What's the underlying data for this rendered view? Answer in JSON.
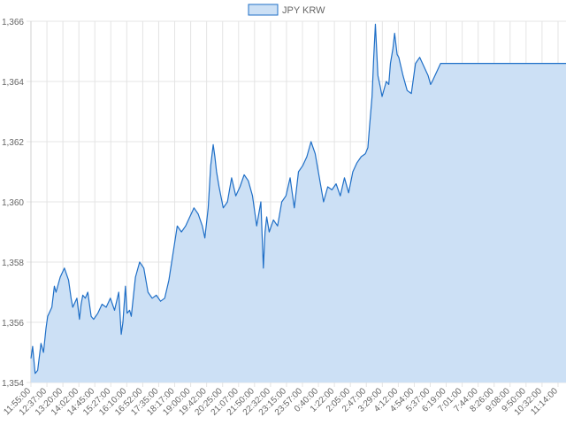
{
  "chart_data": {
    "type": "area",
    "legend": {
      "label": "JPY KRW",
      "position": "top"
    },
    "colors": {
      "line": "#1f6fc7",
      "fill": "#cce0f5",
      "grid": "#e4e4e4",
      "text": "#666666"
    },
    "grid": true,
    "y_range": [
      1354,
      1366
    ],
    "y_ticks": [
      1354,
      1356,
      1358,
      1360,
      1362,
      1364,
      1366
    ],
    "y_tick_labels": [
      "1,354",
      "1,356",
      "1,358",
      "1,360",
      "1,362",
      "1,364",
      "1,366"
    ],
    "x_tick_labels": [
      "11:55:00",
      "12:37:00",
      "13:20:00",
      "14:02:00",
      "14:45:00",
      "15:27:00",
      "16:10:00",
      "16:52:00",
      "17:35:00",
      "18:17:00",
      "19:00:00",
      "19:42:00",
      "20:25:00",
      "21:07:00",
      "21:50:00",
      "22:32:00",
      "23:15:00",
      "23:57:00",
      "0:40:00",
      "1:22:00",
      "2:05:00",
      "2:47:00",
      "3:29:00",
      "4:12:00",
      "4:54:00",
      "5:37:00",
      "6:19:00",
      "7:01:00",
      "7:44:00",
      "8:26:00",
      "9:08:00",
      "9:50:00",
      "10:32:00",
      "11:14:00"
    ],
    "series": [
      {
        "name": "JPY KRW",
        "x": [
          0,
          2,
          5,
          8,
          12,
          15,
          18,
          20,
          25,
          28,
          30,
          35,
          40,
          45,
          48,
          50,
          55,
          58,
          60,
          62,
          65,
          68,
          70,
          72,
          75,
          80,
          85,
          90,
          95,
          100,
          105,
          108,
          110,
          113,
          115,
          118,
          120,
          125,
          130,
          135,
          140,
          145,
          150,
          155,
          160,
          165,
          170,
          175,
          180,
          185,
          190,
          195,
          200,
          205,
          208,
          210,
          212,
          215,
          218,
          220,
          222,
          225,
          230,
          235,
          240,
          245,
          250,
          255,
          260,
          265,
          270,
          275,
          278,
          280,
          282,
          285,
          290,
          295,
          300,
          305,
          310,
          315,
          320,
          325,
          330,
          335,
          340,
          345,
          350,
          355,
          360,
          365,
          370,
          375,
          380,
          385,
          390,
          395,
          400,
          403,
          405,
          408,
          410,
          412,
          415,
          418,
          420,
          425,
          428,
          430,
          433,
          435,
          438,
          440,
          445,
          450,
          455,
          460,
          465,
          470,
          475,
          478,
          480,
          490,
          500,
          510,
          520,
          530,
          540,
          550,
          560,
          570,
          580,
          590,
          600,
          610,
          620,
          630,
          640
        ],
        "y": [
          1354.8,
          1355.2,
          1354.3,
          1354.4,
          1355.3,
          1355.0,
          1355.8,
          1356.2,
          1356.5,
          1357.2,
          1357.0,
          1357.5,
          1357.8,
          1357.4,
          1356.8,
          1356.5,
          1356.8,
          1356.1,
          1356.6,
          1356.9,
          1356.8,
          1357.0,
          1356.6,
          1356.2,
          1356.1,
          1356.3,
          1356.6,
          1356.5,
          1356.8,
          1356.4,
          1357.0,
          1355.6,
          1356.0,
          1357.2,
          1356.3,
          1356.4,
          1356.2,
          1357.5,
          1358.0,
          1357.8,
          1357.0,
          1356.8,
          1356.9,
          1356.7,
          1356.8,
          1357.4,
          1358.3,
          1359.2,
          1359.0,
          1359.2,
          1359.5,
          1359.8,
          1359.6,
          1359.2,
          1358.8,
          1359.3,
          1359.8,
          1361.2,
          1361.9,
          1361.5,
          1361.0,
          1360.5,
          1359.8,
          1360.0,
          1360.8,
          1360.2,
          1360.5,
          1360.9,
          1360.7,
          1360.2,
          1359.2,
          1360.0,
          1357.8,
          1359.0,
          1359.5,
          1359.0,
          1359.4,
          1359.2,
          1360.0,
          1360.2,
          1360.8,
          1359.8,
          1361.0,
          1361.2,
          1361.5,
          1362.0,
          1361.6,
          1360.8,
          1360.0,
          1360.5,
          1360.4,
          1360.6,
          1360.2,
          1360.8,
          1360.3,
          1361.0,
          1361.3,
          1361.5,
          1361.6,
          1361.8,
          1362.5,
          1363.5,
          1364.8,
          1365.9,
          1364.2,
          1363.8,
          1363.5,
          1364.0,
          1363.9,
          1364.6,
          1365.1,
          1365.6,
          1364.9,
          1364.8,
          1364.2,
          1363.7,
          1363.6,
          1364.6,
          1364.8,
          1364.5,
          1364.2,
          1363.9,
          1364.0,
          1364.6,
          1364.6,
          1364.6,
          1364.6,
          1364.6,
          1364.6,
          1364.6,
          1364.6,
          1364.6,
          1364.6,
          1364.6,
          1364.6,
          1364.6,
          1364.6,
          1364.6,
          1364.6
        ]
      }
    ]
  }
}
